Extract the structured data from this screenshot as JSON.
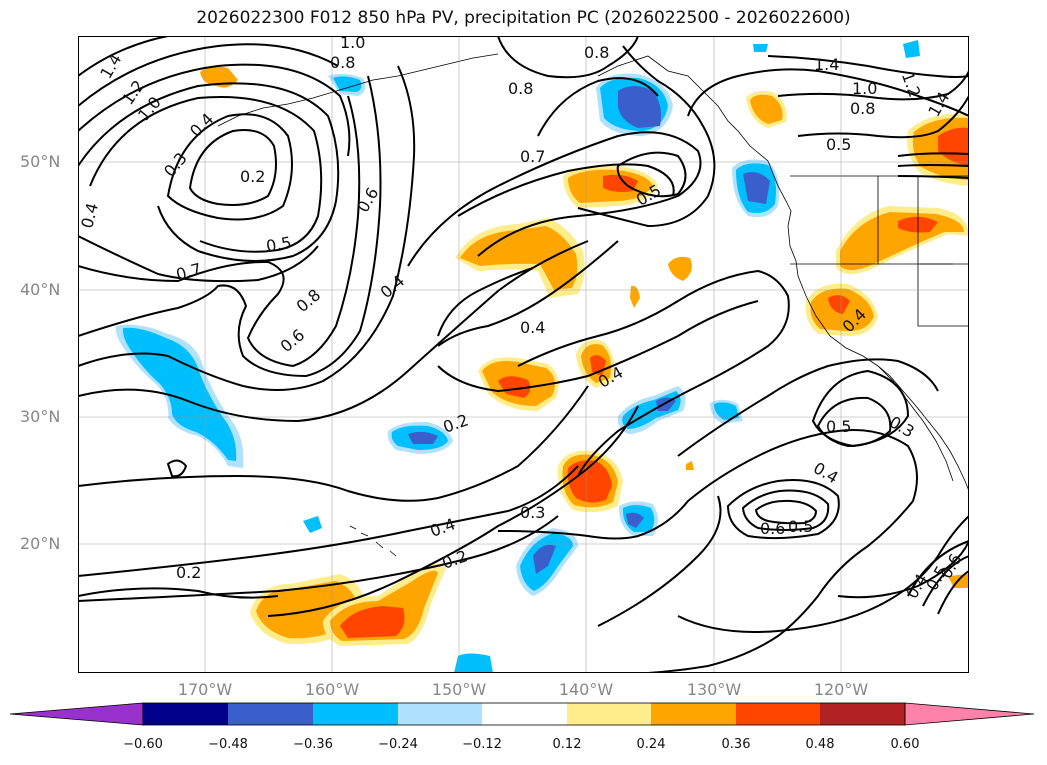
{
  "title": "2026022300 F012 850 hPa PV, precipitation PC (2026022500 - 2026022600)",
  "map": {
    "lat_labels": [
      "50°N",
      "40°N",
      "30°N",
      "20°N"
    ],
    "lon_labels": [
      "170°W",
      "160°W",
      "150°W",
      "140°W",
      "130°W",
      "120°W"
    ],
    "contour_labels": [
      "1.4",
      "1.2",
      "1.0",
      "0.4",
      "0.3",
      "0.2",
      "0.8",
      "1.0",
      "0.8",
      "0.7",
      "0.8",
      "0.5",
      "0.6",
      "0.7",
      "0.8",
      "0.5",
      "1.4",
      "1.0",
      "1.2",
      "1.4",
      "0.8",
      "0.5",
      "0.4",
      "0.4",
      "0.6",
      "0.4",
      "0.2",
      "0.4",
      "0.3",
      "0.4",
      "0.2",
      "0.5",
      "0.3",
      "0.4",
      "0.6",
      "0.5",
      "0.2",
      "0.4",
      "0.5",
      "0.6",
      "0.4"
    ]
  },
  "colorbar": {
    "ticks": [
      "−0.60",
      "−0.48",
      "−0.36",
      "−0.24",
      "−0.12",
      "0.12",
      "0.24",
      "0.36",
      "0.48",
      "0.60"
    ],
    "colors": [
      "#9932cc",
      "#00008b",
      "#3a5fcd",
      "#00bfff",
      "#b0e2ff",
      "#ffffff",
      "#ffec8b",
      "#ffa500",
      "#ff4500",
      "#b22222",
      "#ff82ab"
    ]
  }
}
